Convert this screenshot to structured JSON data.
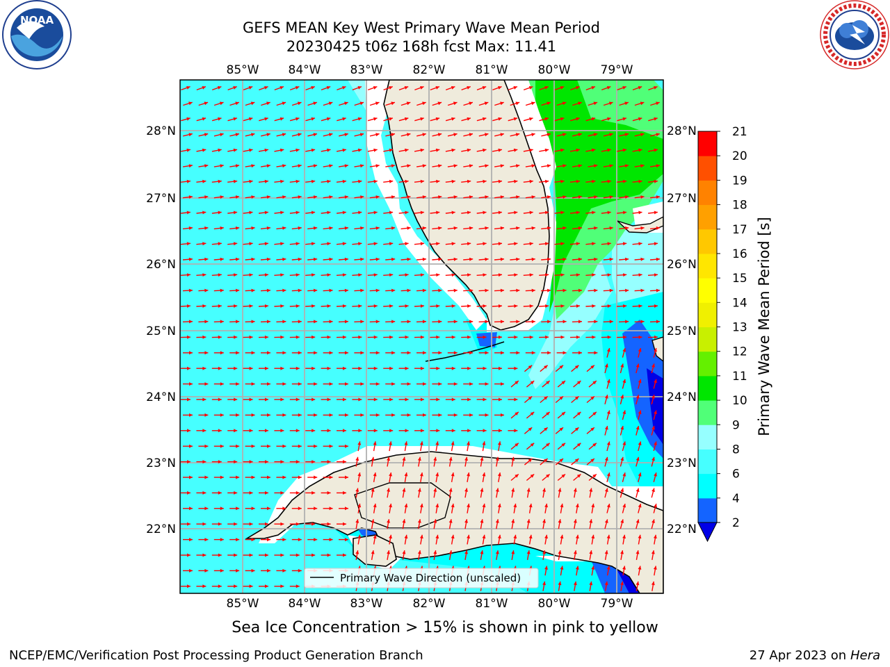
{
  "title": {
    "line1": "GEFS MEAN Key West Primary Wave Mean Period",
    "line2": "20230425 t06z 168h fcst   Max: 11.41"
  },
  "logos": {
    "noaa_text": "NOAA",
    "noaa_ring_text": "NATIONAL OCEANIC AND ATMOSPHERIC ADMINISTRATION · U.S. DEPARTMENT OF COMMERCE",
    "nws_ring_text": "NATIONAL WEATHER SERVICE"
  },
  "map": {
    "longitude_labels": [
      "85°W",
      "84°W",
      "83°W",
      "82°W",
      "81°W",
      "80°W",
      "79°W"
    ],
    "latitude_labels": [
      "28°N",
      "27°N",
      "26°N",
      "25°N",
      "24°N",
      "23°N",
      "22°N"
    ],
    "lon_range": [
      -86.0,
      -78.3
    ],
    "lat_range": [
      21.0,
      28.75
    ],
    "gridlines": true,
    "legend_text": "Primary Wave Direction (unscaled)",
    "arrow_color": "#ff0000",
    "land_color": "#efebdc"
  },
  "colorbar": {
    "label": "Primary Wave Mean Period [s]",
    "ticks": [
      "2",
      "4",
      "6",
      "8",
      "9",
      "10",
      "11",
      "12",
      "13",
      "14",
      "15",
      "16",
      "17",
      "18",
      "19",
      "20",
      "21"
    ],
    "colors": [
      "#1464ff",
      "#00ffff",
      "#46ffff",
      "#96ffff",
      "#50ff78",
      "#00e600",
      "#64f000",
      "#c8f000",
      "#f0f000",
      "#ffff00",
      "#ffe600",
      "#ffc800",
      "#ffa000",
      "#ff8200",
      "#ff5000",
      "#ff0000"
    ],
    "extend_color": "#0000e6"
  },
  "footer": {
    "sea_ice_note": "Sea Ice Concentration > 15% is shown in pink to yellow",
    "credit_left": "NCEP/EMC/Verification Post Processing Product Generation Branch",
    "credit_date": "27 Apr 2023 on ",
    "credit_machine": "Hera"
  }
}
